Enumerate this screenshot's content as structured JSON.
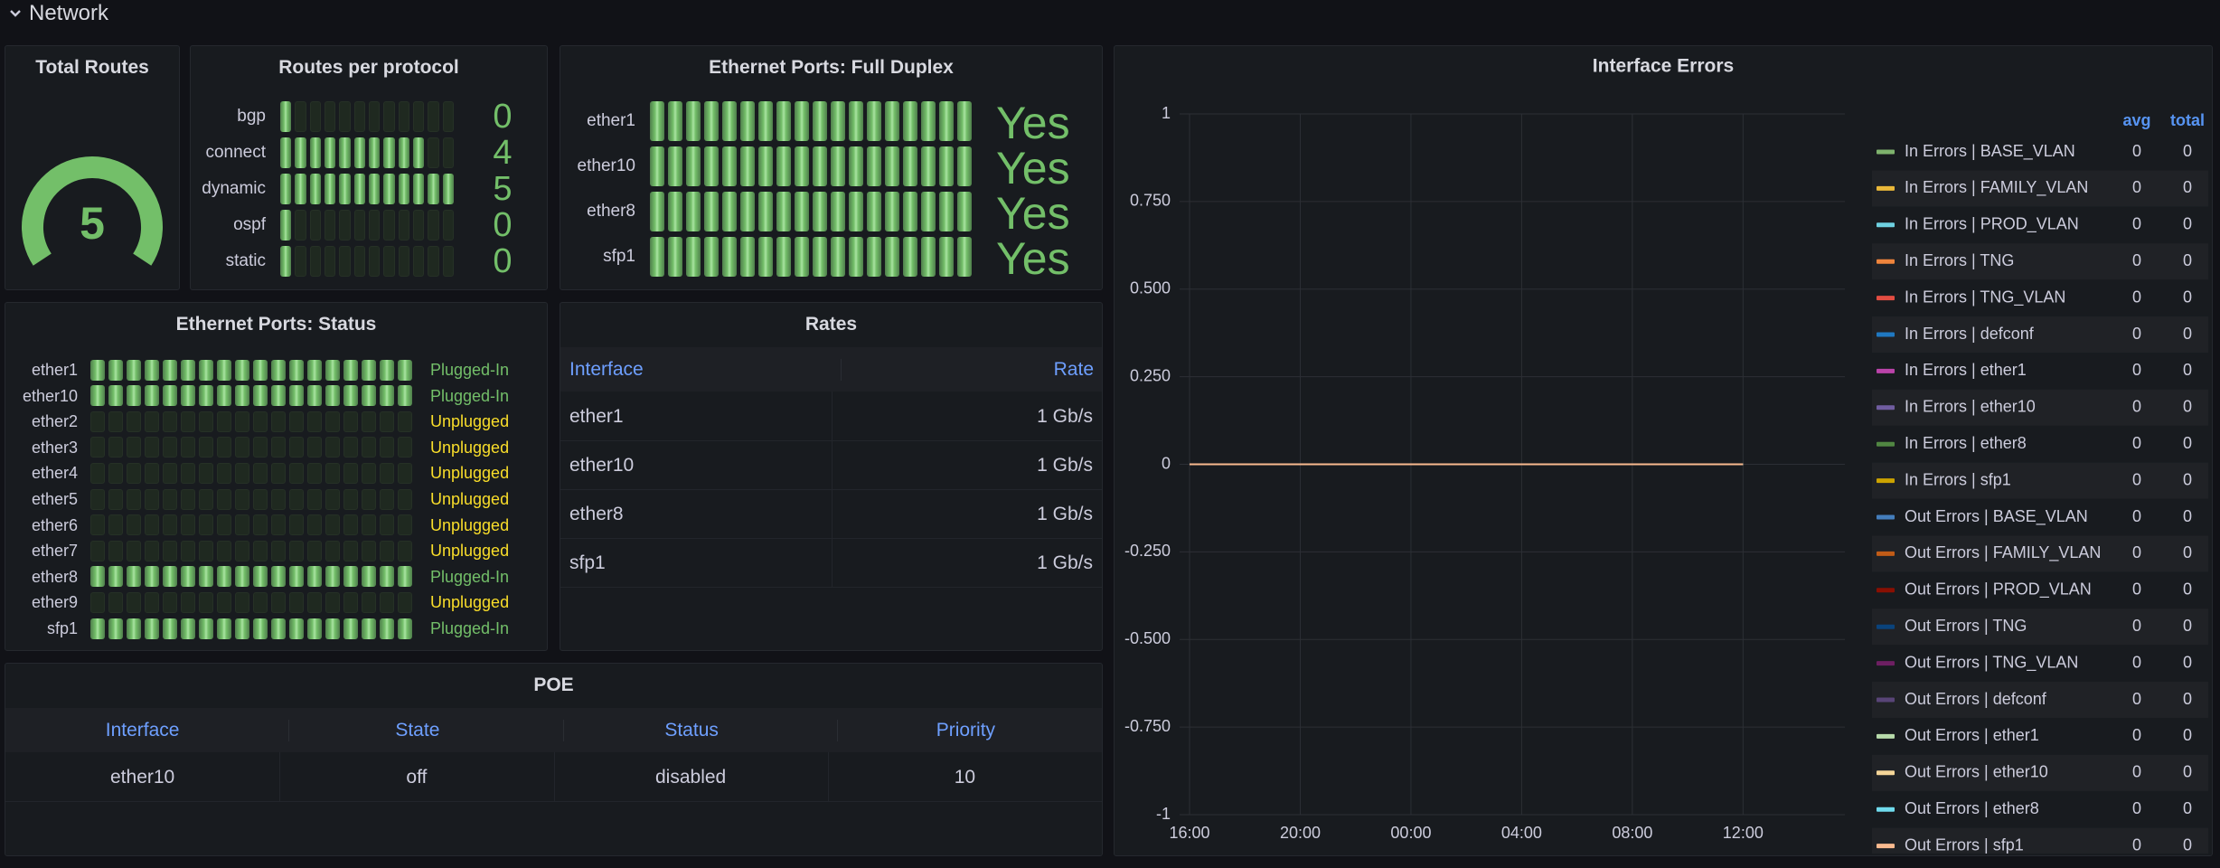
{
  "section": {
    "title": "Network"
  },
  "total_routes": {
    "title": "Total Routes",
    "value": 5,
    "color": "#73bf69"
  },
  "routes_per_protocol": {
    "title": "Routes per protocol",
    "color": "#73bf69",
    "rows": [
      {
        "label": "bgp",
        "value": 0
      },
      {
        "label": "connect",
        "value": 4
      },
      {
        "label": "dynamic",
        "value": 5
      },
      {
        "label": "ospf",
        "value": 0
      },
      {
        "label": "static",
        "value": 0
      }
    ]
  },
  "full_duplex": {
    "title": "Ethernet Ports: Full Duplex",
    "color": "#73bf69",
    "rows": [
      {
        "label": "ether1",
        "value": "Yes"
      },
      {
        "label": "ether10",
        "value": "Yes"
      },
      {
        "label": "ether8",
        "value": "Yes"
      },
      {
        "label": "sfp1",
        "value": "Yes"
      }
    ]
  },
  "port_status": {
    "title": "Ethernet Ports: Status",
    "lit_color": "#73bf69",
    "rows": [
      {
        "label": "ether1",
        "value": "Plugged-In",
        "color": "#73bf69"
      },
      {
        "label": "ether10",
        "value": "Plugged-In",
        "color": "#73bf69"
      },
      {
        "label": "ether2",
        "value": "Unplugged",
        "color": "#fade2a"
      },
      {
        "label": "ether3",
        "value": "Unplugged",
        "color": "#fade2a"
      },
      {
        "label": "ether4",
        "value": "Unplugged",
        "color": "#fade2a"
      },
      {
        "label": "ether5",
        "value": "Unplugged",
        "color": "#fade2a"
      },
      {
        "label": "ether6",
        "value": "Unplugged",
        "color": "#fade2a"
      },
      {
        "label": "ether7",
        "value": "Unplugged",
        "color": "#fade2a"
      },
      {
        "label": "ether8",
        "value": "Plugged-In",
        "color": "#73bf69"
      },
      {
        "label": "ether9",
        "value": "Unplugged",
        "color": "#fade2a"
      },
      {
        "label": "sfp1",
        "value": "Plugged-In",
        "color": "#73bf69"
      }
    ]
  },
  "rates": {
    "title": "Rates",
    "columns": [
      "Interface",
      "Rate"
    ],
    "rows": [
      [
        "ether1",
        "1 Gb/s"
      ],
      [
        "ether10",
        "1 Gb/s"
      ],
      [
        "ether8",
        "1 Gb/s"
      ],
      [
        "sfp1",
        "1 Gb/s"
      ]
    ]
  },
  "poe": {
    "title": "POE",
    "columns": [
      "Interface",
      "State",
      "Status",
      "Priority"
    ],
    "rows": [
      [
        "ether10",
        "off",
        "disabled",
        10
      ]
    ]
  },
  "chart_data": {
    "type": "line",
    "title": "Interface Errors",
    "x": [
      "16:00",
      "20:00",
      "00:00",
      "04:00",
      "08:00",
      "12:00"
    ],
    "ylim": [
      -1,
      1
    ],
    "yticks": [
      -1,
      {
        "value": -0.75,
        "label": "-0.750"
      },
      {
        "value": -0.5,
        "label": "-0.500"
      },
      {
        "value": -0.25,
        "label": "-0.250"
      },
      0,
      {
        "value": 0.25,
        "label": "0.250"
      },
      {
        "value": 0.5,
        "label": "0.500"
      },
      {
        "value": 0.75,
        "label": "0.750"
      },
      1
    ],
    "grid": true,
    "legend": "right",
    "legend_columns": [
      "avg",
      "total"
    ],
    "series": [
      {
        "name": "In Errors | BASE_VLAN",
        "color": "#7EB26D",
        "values": [
          0,
          0,
          0,
          0,
          0,
          0
        ],
        "avg": 0,
        "total": 0
      },
      {
        "name": "In Errors | FAMILY_VLAN",
        "color": "#EAB839",
        "values": [
          0,
          0,
          0,
          0,
          0,
          0
        ],
        "avg": 0,
        "total": 0
      },
      {
        "name": "In Errors | PROD_VLAN",
        "color": "#6ED0E0",
        "values": [
          0,
          0,
          0,
          0,
          0,
          0
        ],
        "avg": 0,
        "total": 0
      },
      {
        "name": "In Errors | TNG",
        "color": "#EF843C",
        "values": [
          0,
          0,
          0,
          0,
          0,
          0
        ],
        "avg": 0,
        "total": 0
      },
      {
        "name": "In Errors | TNG_VLAN",
        "color": "#E24D42",
        "values": [
          0,
          0,
          0,
          0,
          0,
          0
        ],
        "avg": 0,
        "total": 0
      },
      {
        "name": "In Errors | defconf",
        "color": "#1F78C1",
        "values": [
          0,
          0,
          0,
          0,
          0,
          0
        ],
        "avg": 0,
        "total": 0
      },
      {
        "name": "In Errors | ether1",
        "color": "#BA43A9",
        "values": [
          0,
          0,
          0,
          0,
          0,
          0
        ],
        "avg": 0,
        "total": 0
      },
      {
        "name": "In Errors | ether10",
        "color": "#705DA0",
        "values": [
          0,
          0,
          0,
          0,
          0,
          0
        ],
        "avg": 0,
        "total": 0
      },
      {
        "name": "In Errors | ether8",
        "color": "#508642",
        "values": [
          0,
          0,
          0,
          0,
          0,
          0
        ],
        "avg": 0,
        "total": 0
      },
      {
        "name": "In Errors | sfp1",
        "color": "#CCA300",
        "values": [
          0,
          0,
          0,
          0,
          0,
          0
        ],
        "avg": 0,
        "total": 0
      },
      {
        "name": "Out Errors | BASE_VLAN",
        "color": "#447EBC",
        "values": [
          0,
          0,
          0,
          0,
          0,
          0
        ],
        "avg": 0,
        "total": 0
      },
      {
        "name": "Out Errors | FAMILY_VLAN",
        "color": "#C15C17",
        "values": [
          0,
          0,
          0,
          0,
          0,
          0
        ],
        "avg": 0,
        "total": 0
      },
      {
        "name": "Out Errors | PROD_VLAN",
        "color": "#890F02",
        "values": [
          0,
          0,
          0,
          0,
          0,
          0
        ],
        "avg": 0,
        "total": 0
      },
      {
        "name": "Out Errors | TNG",
        "color": "#0A437C",
        "values": [
          0,
          0,
          0,
          0,
          0,
          0
        ],
        "avg": 0,
        "total": 0
      },
      {
        "name": "Out Errors | TNG_VLAN",
        "color": "#6D1F62",
        "values": [
          0,
          0,
          0,
          0,
          0,
          0
        ],
        "avg": 0,
        "total": 0
      },
      {
        "name": "Out Errors | defconf",
        "color": "#584477",
        "values": [
          0,
          0,
          0,
          0,
          0,
          0
        ],
        "avg": 0,
        "total": 0
      },
      {
        "name": "Out Errors | ether1",
        "color": "#B7DBAB",
        "values": [
          0,
          0,
          0,
          0,
          0,
          0
        ],
        "avg": 0,
        "total": 0
      },
      {
        "name": "Out Errors | ether10",
        "color": "#F4D598",
        "values": [
          0,
          0,
          0,
          0,
          0,
          0
        ],
        "avg": 0,
        "total": 0
      },
      {
        "name": "Out Errors | ether8",
        "color": "#70DBED",
        "values": [
          0,
          0,
          0,
          0,
          0,
          0
        ],
        "avg": 0,
        "total": 0
      },
      {
        "name": "Out Errors | sfp1",
        "color": "#F9BA8F",
        "values": [
          0,
          0,
          0,
          0,
          0,
          0
        ],
        "avg": 0,
        "total": 0
      }
    ]
  }
}
